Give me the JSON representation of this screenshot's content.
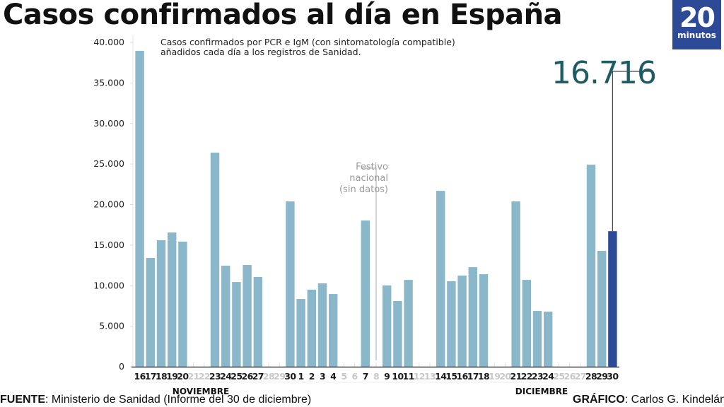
{
  "header": {
    "title": "Casos confirmados al día en España",
    "logo_number": "20",
    "logo_text": "minutos"
  },
  "footer": {
    "source_label": "FUENTE",
    "source_text": ": Ministerio de Sanidad (Informe del 30 de diciembre)",
    "credit_label": "GRÁFICO",
    "credit_text": ": Carlos G. Kindelán"
  },
  "colors": {
    "bar": "#8ab7c9",
    "highlight_bar": "#2c4a96",
    "callout": "#1d5c63",
    "no_data_label": "#c8c8c8",
    "logo_bg": "#2c4a96"
  },
  "chart_data": {
    "type": "bar",
    "title": "Casos confirmados al día en España",
    "subtitle": "Casos confirmados por PCR e IgM (con sintomatología compatible) añadidos cada día a los registros de Sanidad.",
    "xlabel": "",
    "ylabel": "",
    "ylim": [
      0,
      40000
    ],
    "yticks": [
      0,
      5000,
      10000,
      15000,
      20000,
      25000,
      30000,
      35000,
      40000
    ],
    "ytick_labels": [
      "0",
      "5.000",
      "10.000",
      "15.000",
      "20.000",
      "25.000",
      "30.000",
      "35.000",
      "40.000"
    ],
    "grid": false,
    "legend": "none",
    "categories": [
      "16",
      "17",
      "18",
      "19",
      "20",
      "21",
      "22",
      "23",
      "24",
      "25",
      "26",
      "27",
      "28",
      "29",
      "30",
      "1",
      "2",
      "3",
      "4",
      "5",
      "6",
      "7",
      "8",
      "9",
      "10",
      "11",
      "12",
      "13",
      "14",
      "15",
      "16",
      "17",
      "18",
      "19",
      "20",
      "21",
      "22",
      "23",
      "24",
      "25",
      "26",
      "27",
      "28",
      "29",
      "30"
    ],
    "values": [
      38950,
      13420,
      15600,
      16560,
      15430,
      null,
      null,
      26400,
      12460,
      10450,
      12550,
      11070,
      null,
      null,
      20390,
      8360,
      9500,
      10280,
      8970,
      null,
      null,
      18030,
      null,
      10020,
      8100,
      10710,
      null,
      null,
      21690,
      10540,
      11240,
      12280,
      11410,
      null,
      null,
      20390,
      10710,
      6880,
      6790,
      null,
      null,
      null,
      24920,
      14290,
      16716
    ],
    "months": [
      {
        "label": "NOVIEMBRE",
        "start_index": 0,
        "end_index": 14
      },
      {
        "label": "DICIEMBRE",
        "start_index": 15,
        "end_index": 44
      }
    ],
    "highlight": {
      "index": 44,
      "value": 16716,
      "label": "16.716"
    },
    "annotations": [
      {
        "index": 22,
        "text": [
          "Festivo",
          "nacional",
          "(sin datos)"
        ]
      }
    ]
  }
}
